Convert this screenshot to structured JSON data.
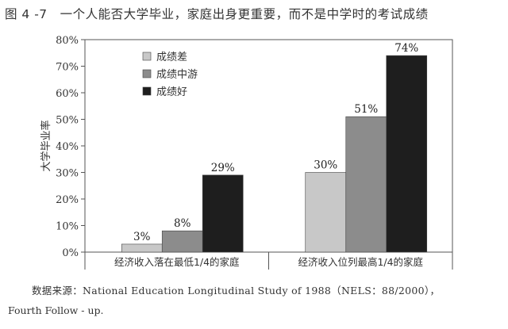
{
  "figure": {
    "title": "图 4 -7　一个人能否大学毕业，家庭出身更重要，而不是中学时的考试成绩",
    "source_line1": "数据来源：National Education Longitudinal Study of 1988（NELS：88/2000），",
    "source_line2": "Fourth Follow - up."
  },
  "chart_data": {
    "type": "bar",
    "title": "一个人能否大学毕业，家庭出身更重要，而不是中学时的考试成绩",
    "ylabel": "大学毕业率",
    "xlabel": "",
    "ylim": [
      0,
      80
    ],
    "yticks": [
      0,
      10,
      20,
      30,
      40,
      50,
      60,
      70,
      80
    ],
    "ytick_labels": [
      "0%",
      "10%",
      "20%",
      "30%",
      "40%",
      "50%",
      "60%",
      "70%",
      "80%"
    ],
    "categories": [
      "经济收入落在最低1/4的家庭",
      "经济收入位列最高1/4的家庭"
    ],
    "series": [
      {
        "name": "成绩差",
        "values": [
          3,
          30
        ],
        "labels": [
          "3%",
          "30%"
        ],
        "color": "#c8c8c8"
      },
      {
        "name": "成绩中游",
        "values": [
          8,
          51
        ],
        "labels": [
          "8%",
          "51%"
        ],
        "color": "#8c8c8c"
      },
      {
        "name": "成绩好",
        "values": [
          29,
          74
        ],
        "labels": [
          "29%",
          "74%"
        ],
        "color": "#1e1e1e"
      }
    ],
    "legend_position": "top-left",
    "grid": false
  }
}
